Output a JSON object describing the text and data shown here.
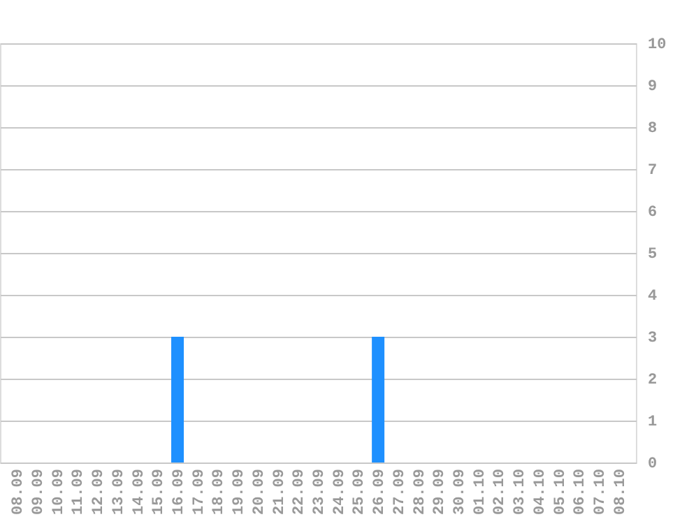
{
  "chart_data": {
    "type": "bar",
    "categories": [
      "08.09",
      "09.09",
      "10.09",
      "11.09",
      "12.09",
      "13.09",
      "14.09",
      "15.09",
      "16.09",
      "17.09",
      "18.09",
      "19.09",
      "20.09",
      "21.09",
      "22.09",
      "23.09",
      "24.09",
      "25.09",
      "26.09",
      "27.09",
      "28.09",
      "29.09",
      "30.09",
      "01.10",
      "02.10",
      "03.10",
      "04.10",
      "05.10",
      "06.10",
      "07.10",
      "08.10"
    ],
    "values": [
      0,
      0,
      0,
      0,
      0,
      0,
      0,
      0,
      3,
      0,
      0,
      0,
      0,
      0,
      0,
      0,
      0,
      0,
      3,
      0,
      0,
      0,
      0,
      0,
      0,
      0,
      0,
      0,
      0,
      0,
      0
    ],
    "color": "#1e90ff",
    "ylim": [
      0,
      10
    ],
    "yticks": [
      0,
      1,
      2,
      3,
      4,
      5,
      6,
      7,
      8,
      9,
      10
    ],
    "grid": "y"
  }
}
